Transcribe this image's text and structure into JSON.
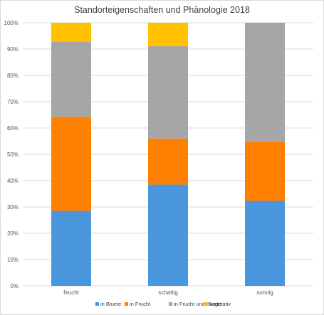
{
  "chart_data": {
    "type": "bar",
    "stacked": true,
    "title": "Standorteigenschaften und Phänologie 2018",
    "xlabel": "",
    "ylabel": "",
    "categories": [
      "feucht",
      "schattig",
      "sonnig"
    ],
    "ylim": [
      0,
      100
    ],
    "y_ticks": [
      "0%",
      "10%",
      "20%",
      "30%",
      "40%",
      "50%",
      "60%",
      "70%",
      "80%",
      "90%",
      "100%"
    ],
    "grid": true,
    "legend_position": "bottom",
    "series": [
      {
        "name": "in Bluete",
        "color": "#4A96DC",
        "values": [
          28.5,
          38.5,
          32.3
        ]
      },
      {
        "name": "in Frucht",
        "color": "#FF7F00",
        "values": [
          35.7,
          17.5,
          22.4
        ]
      },
      {
        "name": "in Frucht und Bluete",
        "color": "#A6A6A6",
        "values": [
          28.6,
          35.1,
          45.3
        ]
      },
      {
        "name": "vegetativ",
        "color": "#FFC000",
        "values": [
          7.2,
          8.9,
          0
        ]
      }
    ]
  }
}
